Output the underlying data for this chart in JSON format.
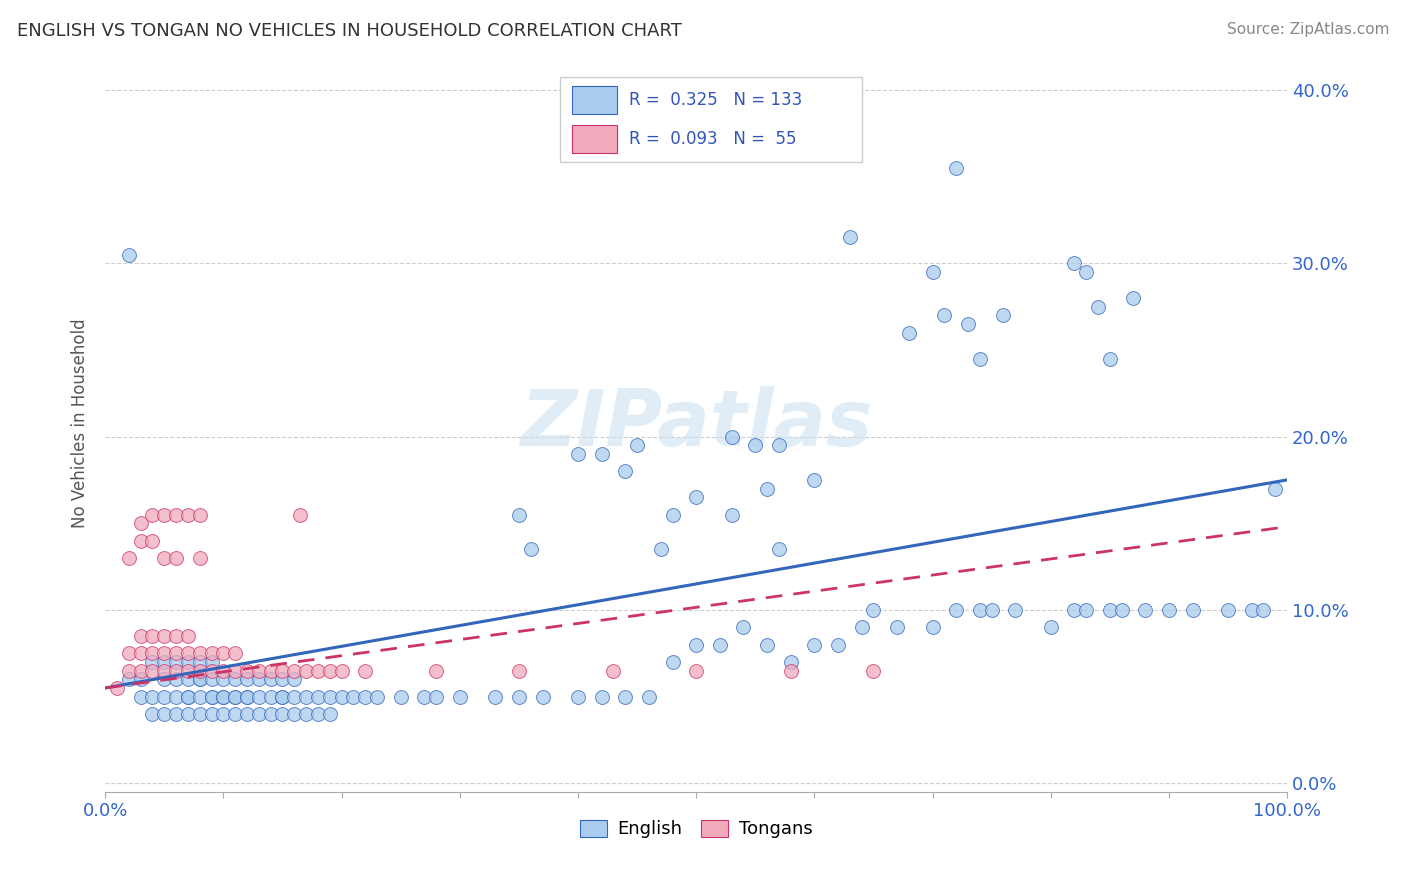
{
  "title": "ENGLISH VS TONGAN NO VEHICLES IN HOUSEHOLD CORRELATION CHART",
  "source": "Source: ZipAtlas.com",
  "ylabel": "No Vehicles in Household",
  "legend_english": "English",
  "legend_tongan": "Tongans",
  "english_R": 0.325,
  "english_N": 133,
  "tongan_R": 0.093,
  "tongan_N": 55,
  "english_color": "#aaccee",
  "tongan_color": "#f0aabb",
  "english_line_color": "#3366bb",
  "tongan_line_color": "#cc3366",
  "background_color": "#ffffff",
  "watermark": "ZIPatlas",
  "xlim": [
    0.0,
    1.0
  ],
  "ylim": [
    -0.005,
    0.42
  ],
  "yticks": [
    0.0,
    0.1,
    0.2,
    0.3,
    0.4
  ],
  "trend_english_start": 0.055,
  "trend_english_end": 0.175,
  "trend_tongan_start": 0.055,
  "trend_tongan_end": 0.148,
  "english_x": [
    0.02,
    0.03,
    0.03,
    0.04,
    0.04,
    0.04,
    0.05,
    0.05,
    0.05,
    0.05,
    0.06,
    0.06,
    0.06,
    0.06,
    0.07,
    0.07,
    0.07,
    0.07,
    0.07,
    0.08,
    0.08,
    0.08,
    0.08,
    0.08,
    0.09,
    0.09,
    0.09,
    0.09,
    0.09,
    0.1,
    0.1,
    0.1,
    0.1,
    0.11,
    0.11,
    0.11,
    0.11,
    0.12,
    0.12,
    0.12,
    0.12,
    0.13,
    0.13,
    0.13,
    0.14,
    0.14,
    0.14,
    0.15,
    0.15,
    0.15,
    0.15,
    0.16,
    0.16,
    0.16,
    0.17,
    0.17,
    0.18,
    0.18,
    0.19,
    0.19,
    0.2,
    0.21,
    0.22,
    0.23,
    0.25,
    0.27,
    0.28,
    0.3,
    0.33,
    0.35,
    0.37,
    0.4,
    0.42,
    0.44,
    0.46,
    0.48,
    0.5,
    0.52,
    0.54,
    0.56,
    0.58,
    0.6,
    0.62,
    0.64,
    0.65,
    0.67,
    0.7,
    0.72,
    0.74,
    0.75,
    0.77,
    0.8,
    0.82,
    0.83,
    0.85,
    0.86,
    0.88,
    0.9,
    0.92,
    0.95,
    0.97,
    0.98,
    0.99,
    0.02,
    0.63,
    0.53,
    0.87,
    0.72,
    0.84,
    0.85,
    0.82,
    0.83,
    0.53,
    0.55,
    0.57,
    0.57,
    0.42,
    0.44,
    0.45,
    0.47,
    0.48,
    0.35,
    0.36,
    0.4,
    0.68,
    0.7,
    0.71,
    0.73,
    0.74,
    0.76,
    0.56,
    0.6,
    0.5
  ],
  "english_y": [
    0.06,
    0.05,
    0.06,
    0.04,
    0.05,
    0.07,
    0.04,
    0.05,
    0.06,
    0.07,
    0.04,
    0.05,
    0.06,
    0.07,
    0.04,
    0.05,
    0.05,
    0.06,
    0.07,
    0.04,
    0.05,
    0.06,
    0.06,
    0.07,
    0.04,
    0.05,
    0.05,
    0.06,
    0.07,
    0.04,
    0.05,
    0.05,
    0.06,
    0.04,
    0.05,
    0.05,
    0.06,
    0.04,
    0.05,
    0.05,
    0.06,
    0.04,
    0.05,
    0.06,
    0.04,
    0.05,
    0.06,
    0.04,
    0.05,
    0.05,
    0.06,
    0.04,
    0.05,
    0.06,
    0.04,
    0.05,
    0.04,
    0.05,
    0.04,
    0.05,
    0.05,
    0.05,
    0.05,
    0.05,
    0.05,
    0.05,
    0.05,
    0.05,
    0.05,
    0.05,
    0.05,
    0.05,
    0.05,
    0.05,
    0.05,
    0.07,
    0.08,
    0.08,
    0.09,
    0.08,
    0.07,
    0.08,
    0.08,
    0.09,
    0.1,
    0.09,
    0.09,
    0.1,
    0.1,
    0.1,
    0.1,
    0.09,
    0.1,
    0.1,
    0.1,
    0.1,
    0.1,
    0.1,
    0.1,
    0.1,
    0.1,
    0.1,
    0.17,
    0.305,
    0.315,
    0.2,
    0.28,
    0.355,
    0.275,
    0.245,
    0.3,
    0.295,
    0.155,
    0.195,
    0.135,
    0.195,
    0.19,
    0.18,
    0.195,
    0.135,
    0.155,
    0.155,
    0.135,
    0.19,
    0.26,
    0.295,
    0.27,
    0.265,
    0.245,
    0.27,
    0.17,
    0.175,
    0.165
  ],
  "tongan_x": [
    0.01,
    0.02,
    0.02,
    0.02,
    0.03,
    0.03,
    0.03,
    0.03,
    0.04,
    0.04,
    0.04,
    0.04,
    0.05,
    0.05,
    0.05,
    0.05,
    0.06,
    0.06,
    0.06,
    0.06,
    0.07,
    0.07,
    0.07,
    0.08,
    0.08,
    0.08,
    0.09,
    0.09,
    0.1,
    0.1,
    0.11,
    0.11,
    0.12,
    0.13,
    0.14,
    0.15,
    0.16,
    0.17,
    0.18,
    0.19,
    0.2,
    0.22,
    0.28,
    0.35,
    0.43,
    0.5,
    0.58,
    0.65,
    0.03,
    0.04,
    0.05,
    0.06,
    0.07,
    0.08,
    0.165
  ],
  "tongan_y": [
    0.055,
    0.065,
    0.075,
    0.13,
    0.065,
    0.075,
    0.085,
    0.14,
    0.065,
    0.075,
    0.085,
    0.14,
    0.065,
    0.075,
    0.085,
    0.13,
    0.065,
    0.075,
    0.085,
    0.13,
    0.065,
    0.075,
    0.085,
    0.065,
    0.075,
    0.13,
    0.065,
    0.075,
    0.065,
    0.075,
    0.065,
    0.075,
    0.065,
    0.065,
    0.065,
    0.065,
    0.065,
    0.065,
    0.065,
    0.065,
    0.065,
    0.065,
    0.065,
    0.065,
    0.065,
    0.065,
    0.065,
    0.065,
    0.15,
    0.155,
    0.155,
    0.155,
    0.155,
    0.155,
    0.155
  ]
}
